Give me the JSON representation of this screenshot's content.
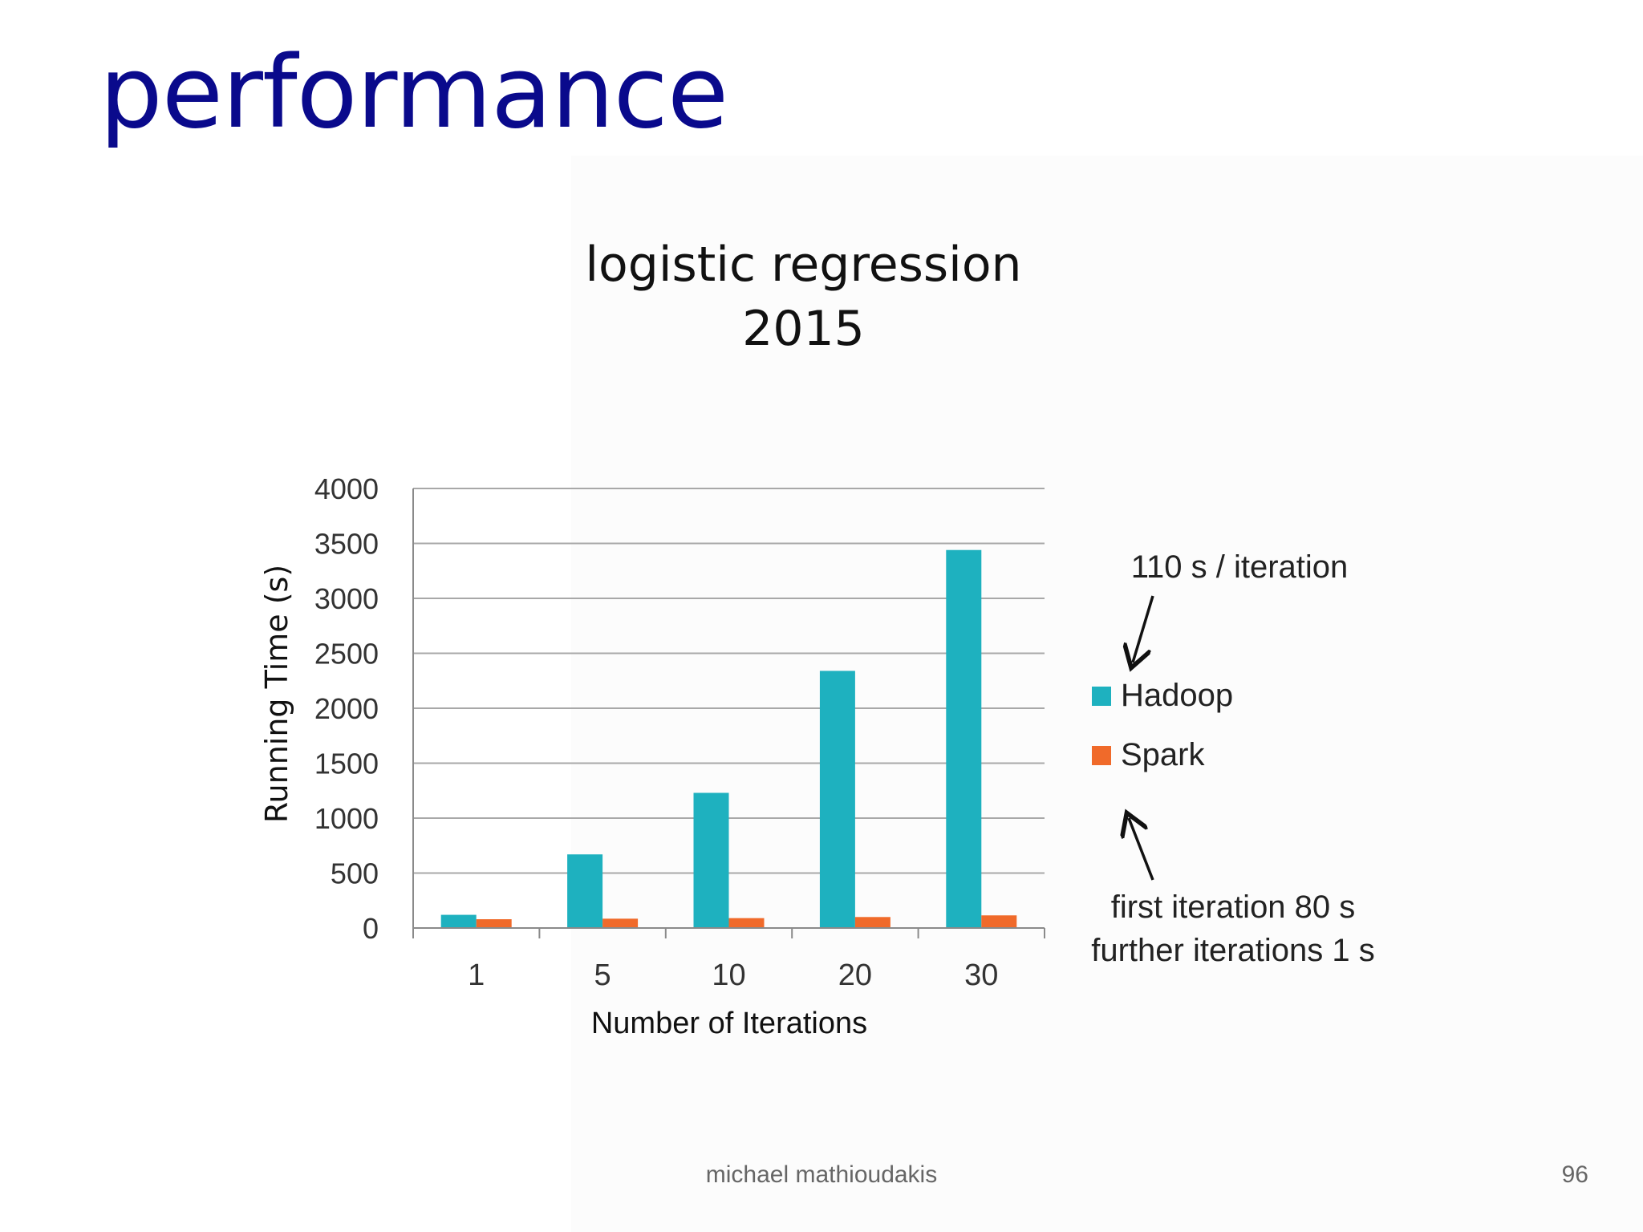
{
  "slide": {
    "title": "performance",
    "author": "michael mathioudakis",
    "page_number": "96"
  },
  "chart_data": {
    "type": "bar",
    "title_line1": "logistic regression",
    "title_line2": "2015",
    "xlabel": "Number of Iterations",
    "ylabel": "Running Time (s)",
    "categories": [
      "1",
      "5",
      "10",
      "20",
      "30"
    ],
    "ylim": [
      0,
      4000
    ],
    "yticks": [
      "0",
      "500",
      "1000",
      "1500",
      "2000",
      "2500",
      "3000",
      "3500",
      "4000"
    ],
    "grid": true,
    "legend_position": "right",
    "series": [
      {
        "name": "Hadoop",
        "color": "#1eb1bf",
        "values": [
          120,
          670,
          1230,
          2340,
          3440
        ]
      },
      {
        "name": "Spark",
        "color": "#f06a2a",
        "values": [
          80,
          85,
          90,
          100,
          115
        ]
      }
    ],
    "annotations": {
      "hadoop_note": "110 s / iteration",
      "spark_note_line1": "first iteration 80 s",
      "spark_note_line2": "further iterations 1 s"
    }
  }
}
